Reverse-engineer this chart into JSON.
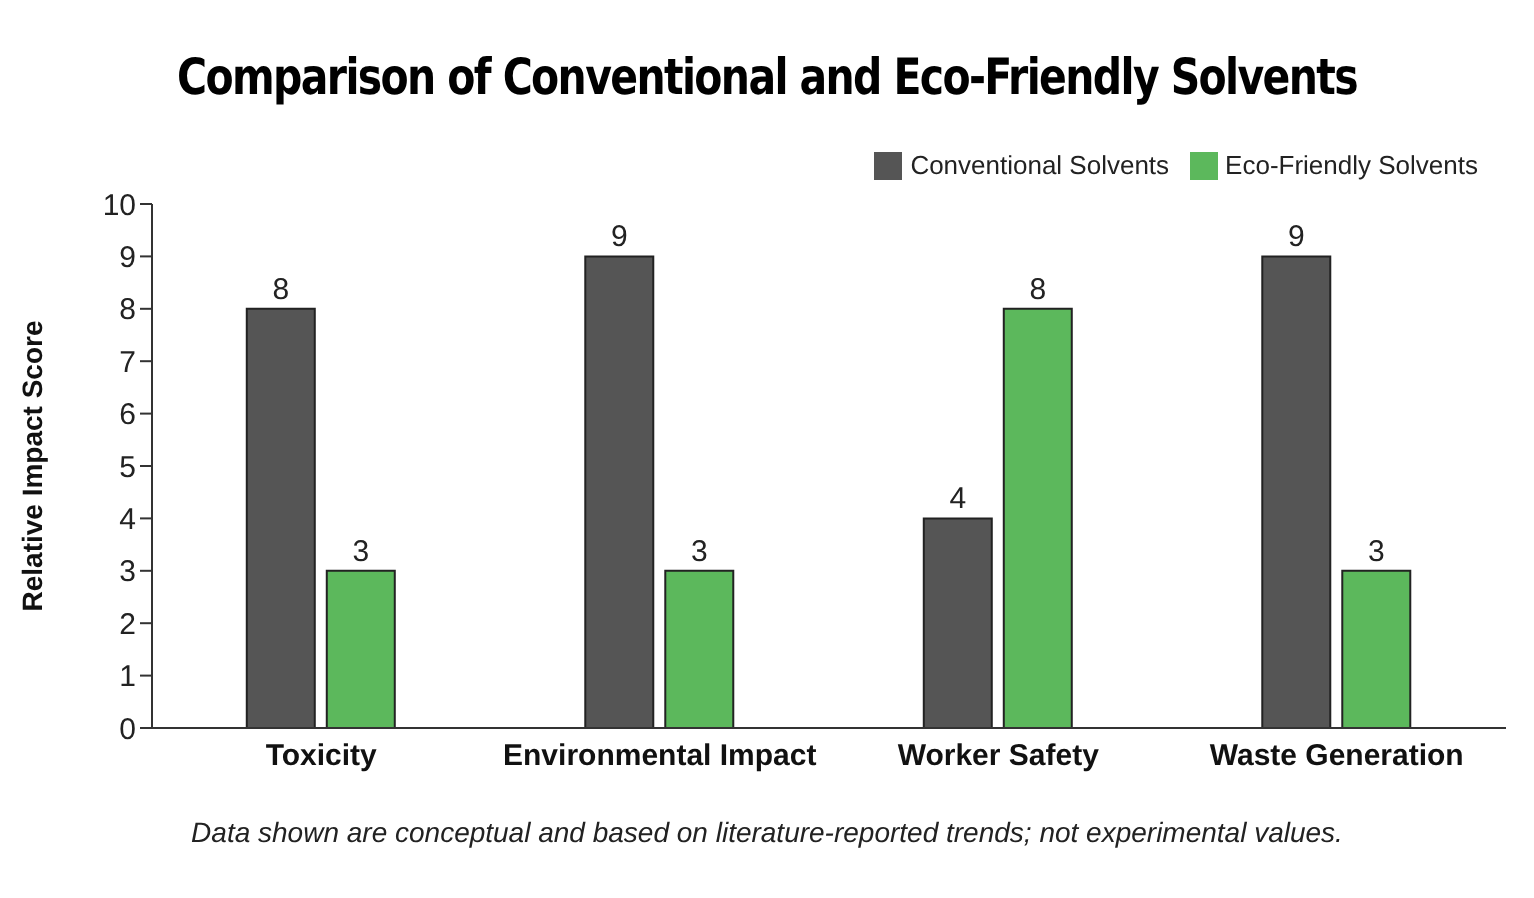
{
  "chart_data": {
    "type": "bar",
    "title": "Comparison of Conventional and Eco-Friendly Solvents",
    "ylabel": "Relative Impact Score",
    "categories": [
      "Toxicity",
      "Environmental Impact",
      "Worker Safety",
      "Waste Generation"
    ],
    "series": [
      {
        "name": "Conventional Solvents",
        "color": "#555555",
        "values": [
          8,
          9,
          4,
          9
        ]
      },
      {
        "name": "Eco-Friendly Solvents",
        "color": "#5cb85c",
        "values": [
          3,
          3,
          8,
          3
        ]
      }
    ],
    "ylim": [
      0,
      10
    ],
    "yticks": [
      0,
      1,
      2,
      3,
      4,
      5,
      6,
      7,
      8,
      9,
      10
    ],
    "grid": false,
    "legend": "top right",
    "data_labels": true,
    "annotations": [
      "Data shown are conceptual and based on literature-reported trends; not experimental values."
    ]
  }
}
